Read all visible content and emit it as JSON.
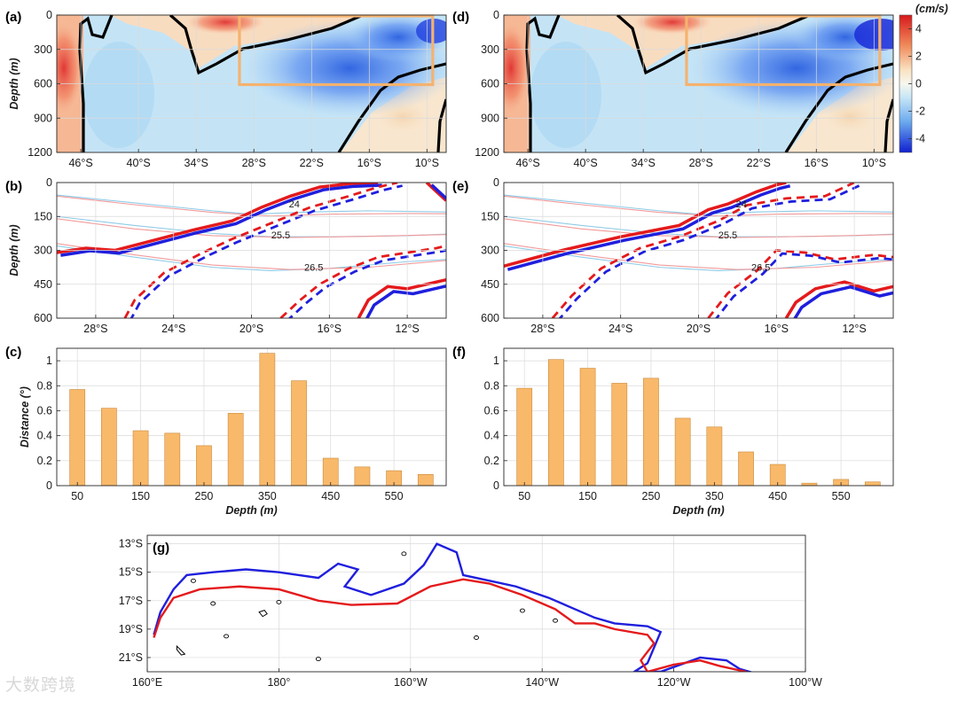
{
  "watermark": "大数跨境",
  "colors": {
    "bar": "#f9b96a",
    "red_line": "#e41a1c",
    "blue_line": "#1f1fdd",
    "box": "#f5b26e"
  },
  "colorbar": {
    "unit": "(cm/s)",
    "ticks": [
      "4",
      "2",
      "0",
      "-2",
      "-4"
    ],
    "range": [
      -5,
      5
    ]
  },
  "chart_data": [
    {
      "panel": "(a)",
      "type": "heatmap",
      "ylabel": "Depth (m)",
      "xticks": [
        "46°S",
        "40°S",
        "34°S",
        "28°S",
        "22°S",
        "16°S",
        "10°S"
      ],
      "yticks": [
        "0",
        "300",
        "600",
        "900",
        "1200"
      ],
      "ylim": [
        0,
        1200
      ],
      "xlim": [
        -48.5,
        -8
      ]
    },
    {
      "panel": "(b)",
      "type": "line",
      "ylabel": "Depth (m)",
      "xticks": [
        "28°S",
        "24°S",
        "20°S",
        "16°S",
        "12°S"
      ],
      "yticks": [
        "0",
        "150",
        "300",
        "450",
        "600"
      ],
      "ylim": [
        0,
        600
      ],
      "xlim": [
        -30,
        -10
      ],
      "isopycnal_labels": [
        "24",
        "25.5",
        "26.5"
      ]
    },
    {
      "panel": "(c)",
      "type": "bar",
      "xlabel": "Depth (m)",
      "ylabel": "Distance (°)",
      "categories": [
        50,
        100,
        150,
        200,
        250,
        300,
        350,
        400,
        450,
        500,
        550,
        600
      ],
      "xtick_labels": [
        "50",
        "150",
        "250",
        "350",
        "450",
        "550"
      ],
      "values": [
        0.77,
        0.62,
        0.44,
        0.42,
        0.32,
        0.58,
        1.06,
        0.84,
        0.22,
        0.15,
        0.12,
        0.09
      ],
      "yticks": [
        "0",
        "0.2",
        "0.4",
        "0.6",
        "0.8",
        "1"
      ],
      "ylim": [
        0,
        1.1
      ]
    },
    {
      "panel": "(d)",
      "type": "heatmap",
      "xticks": [
        "46°S",
        "40°S",
        "34°S",
        "28°S",
        "22°S",
        "16°S",
        "10°S"
      ],
      "yticks": [
        "0",
        "300",
        "600",
        "900",
        "1200"
      ],
      "ylim": [
        0,
        1200
      ],
      "xlim": [
        -48.5,
        -8
      ]
    },
    {
      "panel": "(e)",
      "type": "line",
      "xticks": [
        "28°S",
        "24°S",
        "20°S",
        "16°S",
        "12°S"
      ],
      "yticks": [
        "0",
        "150",
        "300",
        "450",
        "600"
      ],
      "ylim": [
        0,
        600
      ],
      "xlim": [
        -30,
        -10
      ],
      "isopycnal_labels": [
        "24",
        "25.5",
        "26.5"
      ]
    },
    {
      "panel": "(f)",
      "type": "bar",
      "xlabel": "Depth (m)",
      "categories": [
        50,
        100,
        150,
        200,
        250,
        300,
        350,
        400,
        450,
        500,
        550,
        600
      ],
      "xtick_labels": [
        "50",
        "150",
        "250",
        "350",
        "450",
        "550"
      ],
      "values": [
        0.78,
        1.01,
        0.94,
        0.82,
        0.86,
        0.54,
        0.47,
        0.27,
        0.17,
        0.02,
        0.05,
        0.03
      ],
      "yticks": [
        "0",
        "0.2",
        "0.4",
        "0.6",
        "0.8",
        "1"
      ],
      "ylim": [
        0,
        1.1
      ]
    },
    {
      "panel": "(g)",
      "type": "line",
      "xticks": [
        "160°E",
        "180°",
        "160°W",
        "140°W",
        "120°W",
        "100°W"
      ],
      "yticks": [
        "13°S",
        "15°S",
        "17°S",
        "19°S",
        "21°S"
      ],
      "xlim": [
        160,
        260
      ],
      "ylim": [
        -22,
        -12.4
      ]
    }
  ]
}
